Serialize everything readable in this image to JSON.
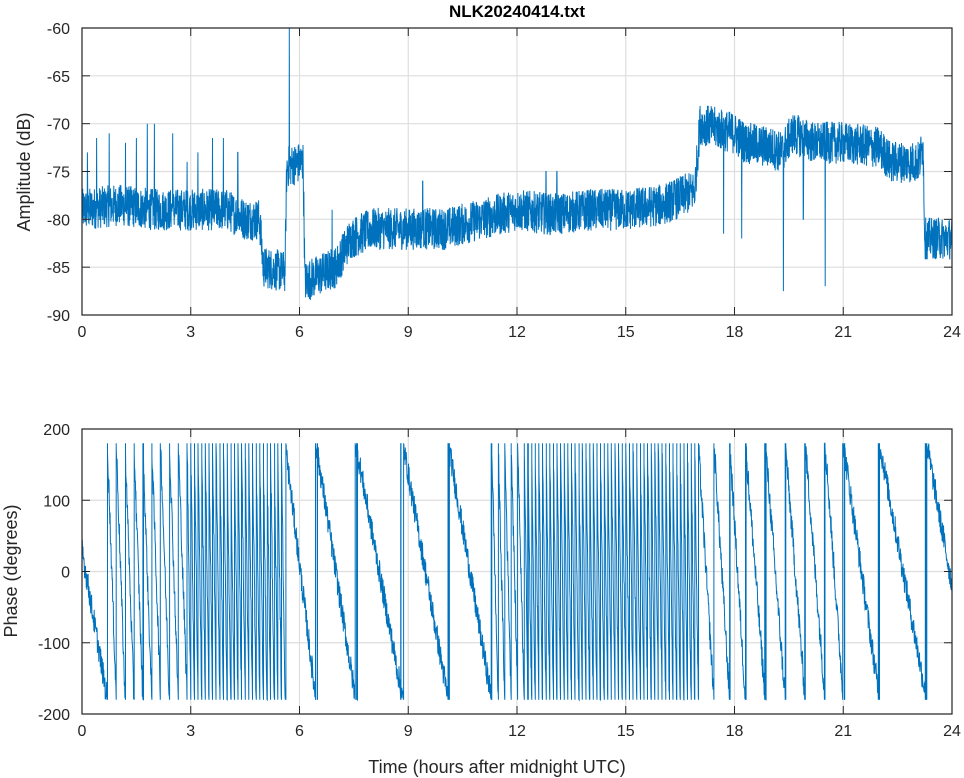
{
  "chart_data": [
    {
      "type": "line",
      "title": "NLK20240414.txt",
      "xlabel": "",
      "ylabel": "Amplitude (dB)",
      "xlim": [
        0,
        24
      ],
      "ylim": [
        -90,
        -60
      ],
      "xticks": [
        0,
        3,
        6,
        9,
        12,
        15,
        18,
        21,
        24
      ],
      "yticks": [
        -60,
        -65,
        -70,
        -75,
        -80,
        -85,
        -90
      ],
      "grid": true,
      "color": "#0072BD",
      "baseline": [
        [
          0,
          -79
        ],
        [
          1,
          -78.5
        ],
        [
          2,
          -79
        ],
        [
          3,
          -79
        ],
        [
          4,
          -79
        ],
        [
          4.5,
          -80
        ],
        [
          4.9,
          -80
        ],
        [
          5.0,
          -85
        ],
        [
          5.6,
          -85.5
        ],
        [
          5.65,
          -74.5
        ],
        [
          6.1,
          -74
        ],
        [
          6.15,
          -86.5
        ],
        [
          7,
          -85
        ],
        [
          7.4,
          -82
        ],
        [
          8,
          -81
        ],
        [
          9,
          -81
        ],
        [
          10,
          -81
        ],
        [
          11,
          -80
        ],
        [
          12,
          -79
        ],
        [
          13,
          -79.5
        ],
        [
          14,
          -79
        ],
        [
          15,
          -79
        ],
        [
          16,
          -78.5
        ],
        [
          16.9,
          -77
        ],
        [
          17.05,
          -70
        ],
        [
          18,
          -71
        ],
        [
          18.3,
          -72
        ],
        [
          19,
          -72.5
        ],
        [
          19.3,
          -73
        ],
        [
          19.6,
          -71
        ],
        [
          20.2,
          -72
        ],
        [
          20.5,
          -72
        ],
        [
          21,
          -72
        ],
        [
          22,
          -72.5
        ],
        [
          22.3,
          -74
        ],
        [
          23.1,
          -74
        ],
        [
          23.2,
          -72
        ],
        [
          23.25,
          -82
        ],
        [
          24,
          -82
        ]
      ],
      "noise_db": 2.2,
      "spikes": [
        [
          0.15,
          -73
        ],
        [
          0.4,
          -71.5
        ],
        [
          0.75,
          -71
        ],
        [
          1.2,
          -72
        ],
        [
          1.5,
          -71.5
        ],
        [
          1.8,
          -70
        ],
        [
          2.0,
          -70
        ],
        [
          2.5,
          -71
        ],
        [
          2.9,
          -74
        ],
        [
          3.2,
          -73
        ],
        [
          3.6,
          -71.5
        ],
        [
          3.9,
          -71.5
        ],
        [
          4.3,
          -73
        ],
        [
          5.72,
          -60
        ],
        [
          6.9,
          -79
        ],
        [
          7.6,
          -82
        ],
        [
          9.4,
          -76
        ],
        [
          12.8,
          -75
        ],
        [
          13.1,
          -75
        ],
        [
          19.35,
          -87.5
        ],
        [
          20.5,
          -87
        ],
        [
          17.7,
          -81.5
        ],
        [
          18.2,
          -82
        ],
        [
          19.9,
          -80
        ],
        [
          23.2,
          -72
        ]
      ]
    },
    {
      "type": "line",
      "title": "",
      "xlabel": "Time (hours after midnight UTC)",
      "ylabel": "Phase (degrees)",
      "xlim": [
        0,
        24
      ],
      "ylim": [
        -200,
        200
      ],
      "xticks": [
        0,
        3,
        6,
        9,
        12,
        15,
        18,
        21,
        24
      ],
      "yticks": [
        200,
        100,
        0,
        -100,
        -200
      ],
      "grid": true,
      "color": "#0072BD",
      "wrap_range": [
        -180,
        180
      ],
      "unwrapped_phase": [
        [
          0,
          30
        ],
        [
          0.7,
          -180
        ],
        [
          2.9,
          -3420
        ],
        [
          5.6,
          -13140
        ],
        [
          6.45,
          -13500
        ],
        [
          7.55,
          -13860
        ],
        [
          8.85,
          -14220
        ],
        [
          10.1,
          -14580
        ],
        [
          11.3,
          -14940
        ],
        [
          12.2,
          -16740
        ],
        [
          17.0,
          -34020
        ],
        [
          18.3,
          -35100
        ],
        [
          20.5,
          -36540
        ],
        [
          21.0,
          -36900
        ],
        [
          22.0,
          -37260
        ],
        [
          23.3,
          -37620
        ],
        [
          24,
          -37820
        ]
      ],
      "noise_deg": 18
    }
  ]
}
